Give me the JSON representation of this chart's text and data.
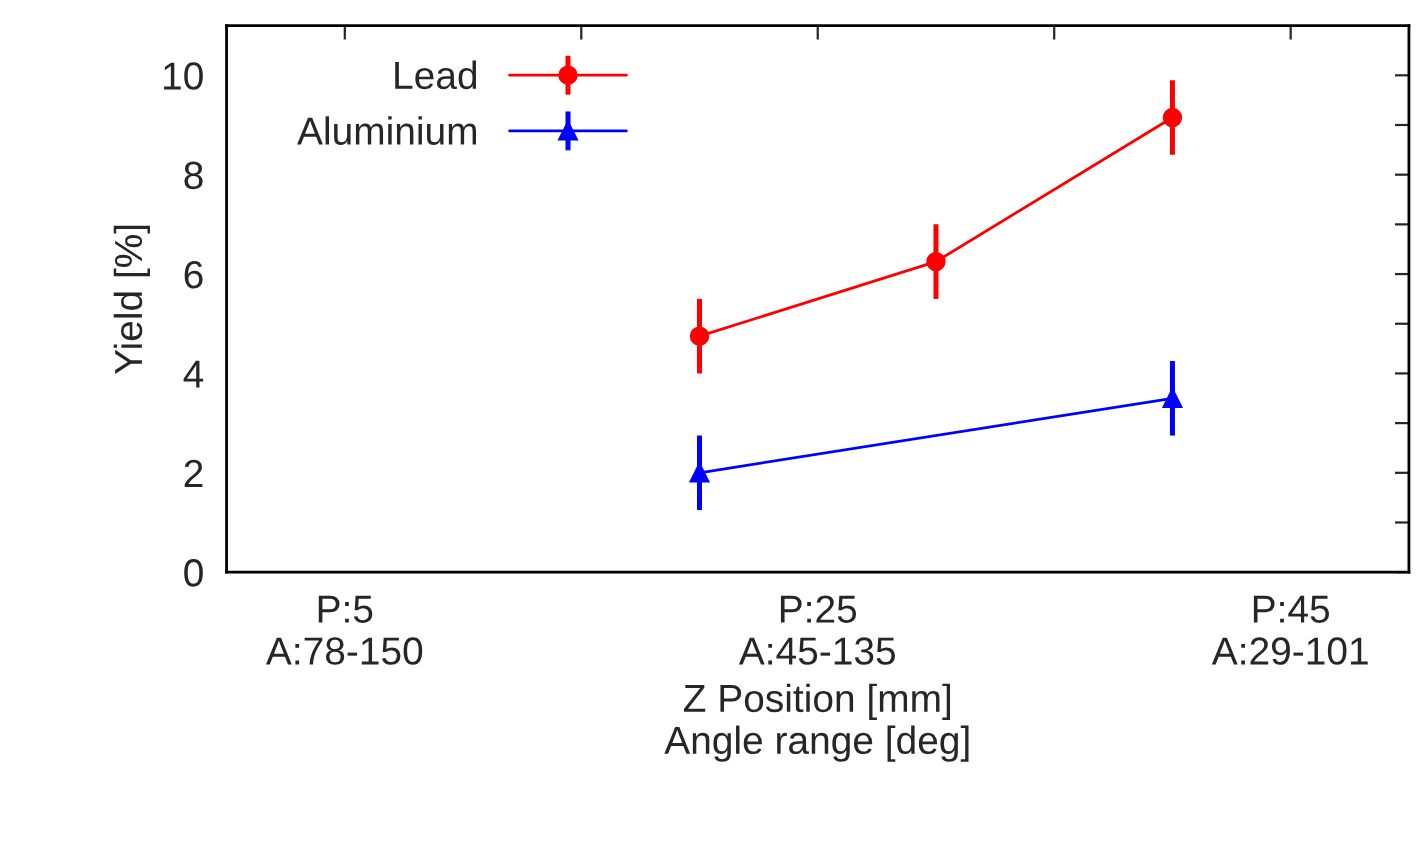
{
  "chart_data": {
    "type": "line",
    "xlabel": "Z Position [mm]\nAngle range [deg]",
    "ylabel": "Yield [%]",
    "categories": [
      "P:5\nA:78-150",
      null,
      null,
      null,
      "P:25\nA:45-135",
      null,
      null,
      null,
      "P:45\nA:29-101"
    ],
    "ylim": [
      0,
      11
    ],
    "yticks": [
      0,
      {
        "value": 1,
        "label": null
      },
      2,
      {
        "value": 3,
        "label": null
      },
      4,
      {
        "value": 5,
        "label": null
      },
      6,
      {
        "value": 7,
        "label": null
      },
      8,
      {
        "value": 9,
        "label": null
      },
      10
    ],
    "series": [
      {
        "name": "Lead",
        "color": "#ff0000",
        "values": [
          null,
          null,
          null,
          4.75,
          null,
          6.25,
          null,
          9.15,
          null
        ],
        "errors": [
          null,
          null,
          null,
          0.75,
          null,
          0.75,
          null,
          0.75,
          null
        ],
        "marker": "circle"
      },
      {
        "name": "Aluminium",
        "color": "#0000ff",
        "values": [
          null,
          null,
          null,
          2.0,
          null,
          null,
          null,
          3.5,
          null
        ],
        "errors": [
          null,
          null,
          null,
          0.75,
          null,
          null,
          null,
          0.75,
          null
        ],
        "marker": "triangle"
      }
    ],
    "legend": "top left",
    "line_style": "solid"
  }
}
